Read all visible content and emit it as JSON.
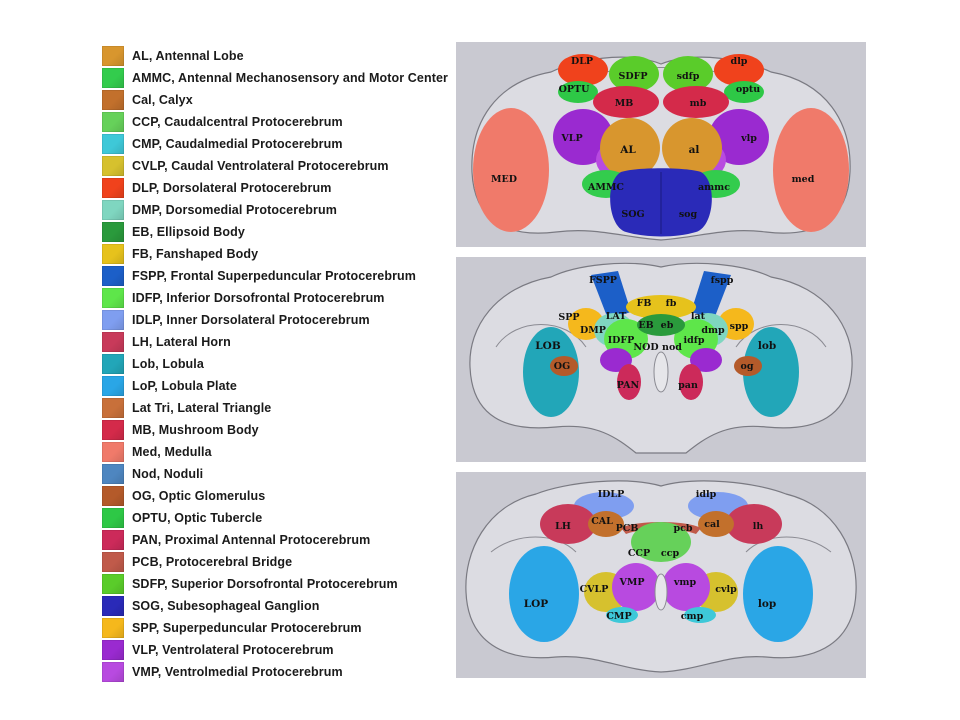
{
  "legend": [
    {
      "label": "AL, Antennal Lobe",
      "color": "#d8962e"
    },
    {
      "label": "AMMC, Antennal Mechanosensory and Motor Center",
      "color": "#33cc4d"
    },
    {
      "label": "Cal, Calyx",
      "color": "#c2702c"
    },
    {
      "label": "CCP, Caudalcentral Protocerebrum",
      "color": "#66d15a"
    },
    {
      "label": "CMP, Caudalmedial Protocerebrum",
      "color": "#3ec8d8"
    },
    {
      "label": "CVLP, Caudal Ventrolateral Protocerebrum",
      "color": "#d6c12e"
    },
    {
      "label": "DLP, Dorsolateral Protocerebrum",
      "color": "#f0421c"
    },
    {
      "label": "DMP, Dorsomedial Protocerebrum",
      "color": "#7fd6c0"
    },
    {
      "label": "EB, Ellipsoid Body",
      "color": "#2a9a3c"
    },
    {
      "label": "FB, Fanshaped Body",
      "color": "#e6c21c"
    },
    {
      "label": "FSPP, Frontal Superpeduncular Protocerebrum",
      "color": "#1c5fc8"
    },
    {
      "label": "IDFP, Inferior Dorsofrontal Protocerebrum",
      "color": "#5ee64a"
    },
    {
      "label": "IDLP, Inner Dorsolateral Protocerebrum",
      "color": "#7f9ef0"
    },
    {
      "label": "LH, Lateral Horn",
      "color": "#c83a5a"
    },
    {
      "label": "Lob, Lobula",
      "color": "#22a6b8"
    },
    {
      "label": "LoP, Lobula Plate",
      "color": "#2aa6e6"
    },
    {
      "label": "Lat Tri, Lateral Triangle",
      "color": "#c8703a"
    },
    {
      "label": "MB, Mushroom Body",
      "color": "#d42a4a"
    },
    {
      "label": "Med, Medulla",
      "color": "#f07a6a"
    },
    {
      "label": "Nod, Noduli",
      "color": "#4e86c0"
    },
    {
      "label": "OG, Optic Glomerulus",
      "color": "#b45a2a"
    },
    {
      "label": "OPTU, Optic Tubercle",
      "color": "#2ec846"
    },
    {
      "label": "PAN, Proximal Antennal Protocerebrum",
      "color": "#cc2a5a"
    },
    {
      "label": "PCB, Protocerebral Bridge",
      "color": "#c05a4a"
    },
    {
      "label": "SDFP, Superior Dorsofrontal Protocerebrum",
      "color": "#5acc2a"
    },
    {
      "label": "SOG, Subesophageal Ganglion",
      "color": "#2a2ab8"
    },
    {
      "label": "SPP, Superpeduncular Protocerebrum",
      "color": "#f5b81c"
    },
    {
      "label": "VLP, Ventrolateral Protocerebrum",
      "color": "#9a2ad0"
    },
    {
      "label": "VMP, Ventrolmedial Protocerebrum",
      "color": "#b84ae0"
    }
  ],
  "panels": {
    "anterior": {
      "labels": [
        "DLP",
        "SDFP",
        "sdfp",
        "dlp",
        "OPTU",
        "optu",
        "MB",
        "mb",
        "VLP",
        "vlp",
        "AL",
        "al",
        "MED",
        "med",
        "AMMC",
        "ammc",
        "SOG",
        "sog"
      ]
    },
    "middle": {
      "labels": [
        "FSPP",
        "fspp",
        "FB",
        "fb",
        "SPP",
        "spp",
        "LAT",
        "lat",
        "DMP",
        "dmp",
        "EB",
        "eb",
        "IDFP",
        "idfp",
        "NOD",
        "nod",
        "LOB",
        "lob",
        "OG",
        "og",
        "PAN",
        "pan"
      ]
    },
    "posterior": {
      "labels": [
        "IDLP",
        "idlp",
        "LH",
        "lh",
        "CAL",
        "cal",
        "PCB",
        "pcb",
        "CCP",
        "ccp",
        "VMP",
        "vmp",
        "CVLP",
        "cvlp",
        "LOP",
        "lop",
        "CMP",
        "cmp"
      ]
    }
  }
}
